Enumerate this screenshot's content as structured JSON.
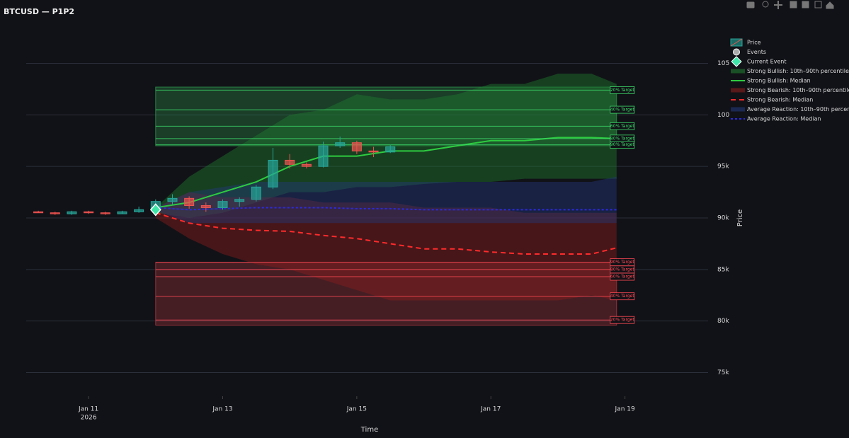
{
  "chart_data": {
    "type": "forecast",
    "title": "BTCUSD — P1P2",
    "x_label": "Time",
    "y_label": "Price",
    "xlim": [
      "2026-01-10T01:40",
      "2026-01-20T05:45"
    ],
    "xticks": [
      {
        "value": "2026-01-11",
        "label": "Jan 11"
      },
      {
        "value": "2026-01-13",
        "label": "Jan 13"
      },
      {
        "value": "2026-01-15",
        "label": "Jan 15"
      },
      {
        "value": "2026-01-17",
        "label": "Jan 17"
      },
      {
        "value": "2026-01-19",
        "label": "Jan 19"
      }
    ],
    "x_year_label": "2026",
    "ylim": [
      72.7,
      108.4
    ],
    "yticks": [
      {
        "value": 75,
        "label": "75k"
      },
      {
        "value": 80,
        "label": "80k"
      },
      {
        "value": 85,
        "label": "85k"
      },
      {
        "value": 90,
        "label": "90k"
      },
      {
        "value": 95,
        "label": "95k"
      },
      100,
      105
    ],
    "grid": true,
    "legend_position": "right",
    "price": {
      "name": "Price",
      "increasing_color": "#26a69a",
      "decreasing_color": "#ef5350",
      "x": [
        "2026-01-10T06:00",
        "2026-01-10T12:00",
        "2026-01-10T18:00",
        "2026-01-11T00:00",
        "2026-01-11T06:00",
        "2026-01-11T12:00",
        "2026-01-11T18:00",
        "2026-01-12T00:00",
        "2026-01-12T06:00",
        "2026-01-12T12:00",
        "2026-01-12T18:00",
        "2026-01-13T00:00",
        "2026-01-13T06:00",
        "2026-01-13T12:00",
        "2026-01-13T18:00",
        "2026-01-14T00:00",
        "2026-01-14T06:00",
        "2026-01-14T12:00",
        "2026-01-14T18:00",
        "2026-01-15T00:00",
        "2026-01-15T06:00",
        "2026-01-15T12:00"
      ],
      "open": [
        90.6,
        90.5,
        90.4,
        90.6,
        90.5,
        90.4,
        90.6,
        90.8,
        91.6,
        91.9,
        91.2,
        91.0,
        91.6,
        91.8,
        93.0,
        95.6,
        95.2,
        95.0,
        97.0,
        97.3,
        96.5,
        96.4
      ],
      "high": [
        90.7,
        90.6,
        90.7,
        90.7,
        90.6,
        90.7,
        91.1,
        91.8,
        92.3,
        92.1,
        91.5,
        91.8,
        92.0,
        93.2,
        96.8,
        96.2,
        95.4,
        97.4,
        97.9,
        97.5,
        96.9,
        97.1
      ],
      "low": [
        90.5,
        90.3,
        90.3,
        90.4,
        90.3,
        90.4,
        90.5,
        90.7,
        91.3,
        90.9,
        90.6,
        90.8,
        91.1,
        91.6,
        92.8,
        94.8,
        94.8,
        94.9,
        96.8,
        96.2,
        95.9,
        96.3
      ],
      "close": [
        90.5,
        90.4,
        90.6,
        90.5,
        90.4,
        90.6,
        90.8,
        91.6,
        91.9,
        91.2,
        91.0,
        91.6,
        91.8,
        93.0,
        95.6,
        95.2,
        95.0,
        97.0,
        97.3,
        96.5,
        96.4,
        96.9
      ]
    },
    "events": {
      "name": "Events",
      "color": "#aaaaaa",
      "x": [],
      "values": []
    },
    "current_event": {
      "name": "Current Event",
      "color": "#3ee6a8",
      "x": "2026-01-12T00:00",
      "value": 90.8
    },
    "forecast_x": [
      "2026-01-12T00:00",
      "2026-01-12T12:00",
      "2026-01-13T00:00",
      "2026-01-13T12:00",
      "2026-01-14T00:00",
      "2026-01-14T12:00",
      "2026-01-15T00:00",
      "2026-01-15T12:00",
      "2026-01-16T00:00",
      "2026-01-16T12:00",
      "2026-01-17T00:00",
      "2026-01-17T12:00",
      "2026-01-18T00:00",
      "2026-01-18T12:00",
      "2026-01-18T21:00"
    ],
    "scenarios": [
      {
        "band_name": "Strong Bullish: 10th–90th percentile",
        "median_name": "Strong Bullish: Median",
        "band_color": "#1f7a2e",
        "median_color": "#2ecc40",
        "dash": "solid",
        "p90": [
          91,
          94,
          96,
          98,
          100,
          100.5,
          102,
          101.5,
          101.5,
          102,
          103,
          103,
          104,
          104,
          103
        ],
        "p10": [
          90.5,
          90,
          90.5,
          91.5,
          92.5,
          92.5,
          93,
          93,
          93.3,
          93.5,
          93.5,
          93.8,
          93.8,
          93.8,
          93.8
        ],
        "median": [
          91,
          91.5,
          92.5,
          93.5,
          95,
          96,
          96,
          96.5,
          96.5,
          97,
          97.5,
          97.5,
          97.8,
          97.8,
          97.7
        ]
      },
      {
        "band_name": "Strong Bearish: 10th–90th percentile",
        "median_name": "Strong Bearish: Median",
        "band_color": "#8a1c1c",
        "median_color": "#ff2b2b",
        "dash": "dash",
        "p90": [
          91,
          92.5,
          92,
          92,
          92,
          91.5,
          91.5,
          91.5,
          91,
          91,
          91,
          90.5,
          90.5,
          90.5,
          90.5
        ],
        "p10": [
          90,
          88,
          86.5,
          85.5,
          85,
          84,
          83,
          82,
          82,
          82,
          82,
          82,
          82,
          82.5,
          82
        ],
        "median": [
          90.5,
          89.5,
          89,
          88.8,
          88.7,
          88.3,
          88,
          87.5,
          87,
          87,
          86.7,
          86.5,
          86.5,
          86.5,
          87.1
        ]
      },
      {
        "band_name": "Average Reaction: 10th–90th percentile",
        "median_name": "Average Reaction: Median",
        "band_color": "#23377a",
        "median_color": "#2a2ae0",
        "dash": "dot",
        "p90": [
          91,
          92.5,
          93,
          93.5,
          93.5,
          93.5,
          93.5,
          93.5,
          93.5,
          93.5,
          93.5,
          93.5,
          93.5,
          93.5,
          94
        ],
        "p10": [
          90.7,
          89.5,
          89.5,
          89.5,
          89.5,
          89.5,
          89.5,
          89.5,
          89.5,
          89.5,
          89.5,
          89.5,
          89.5,
          89.5,
          89.5
        ],
        "median": [
          91,
          90.8,
          90.9,
          91,
          91,
          91,
          90.9,
          90.9,
          90.8,
          90.8,
          90.8,
          90.8,
          90.8,
          90.8,
          90.8
        ]
      }
    ],
    "target_zones": [
      {
        "color": "#3ddc6a",
        "range": [
          97.0,
          102.7
        ],
        "targets": [
          {
            "label": "20% Target",
            "value": 102.4
          },
          {
            "label": "40% Target",
            "value": 100.5
          },
          {
            "label": "60% Target",
            "value": 98.9
          },
          {
            "label": "80% Target",
            "value": 97.7
          },
          {
            "label": "90% Target",
            "value": 97.1
          }
        ]
      },
      {
        "color": "#ff4a55",
        "range": [
          79.6,
          85.7
        ],
        "targets": [
          {
            "label": "90% Target",
            "value": 85.7
          },
          {
            "label": "80% Target",
            "value": 85.0
          },
          {
            "label": "60% Target",
            "value": 84.3
          },
          {
            "label": "40% Target",
            "value": 82.4
          },
          {
            "label": "20% Target",
            "value": 80.1
          }
        ]
      }
    ]
  }
}
